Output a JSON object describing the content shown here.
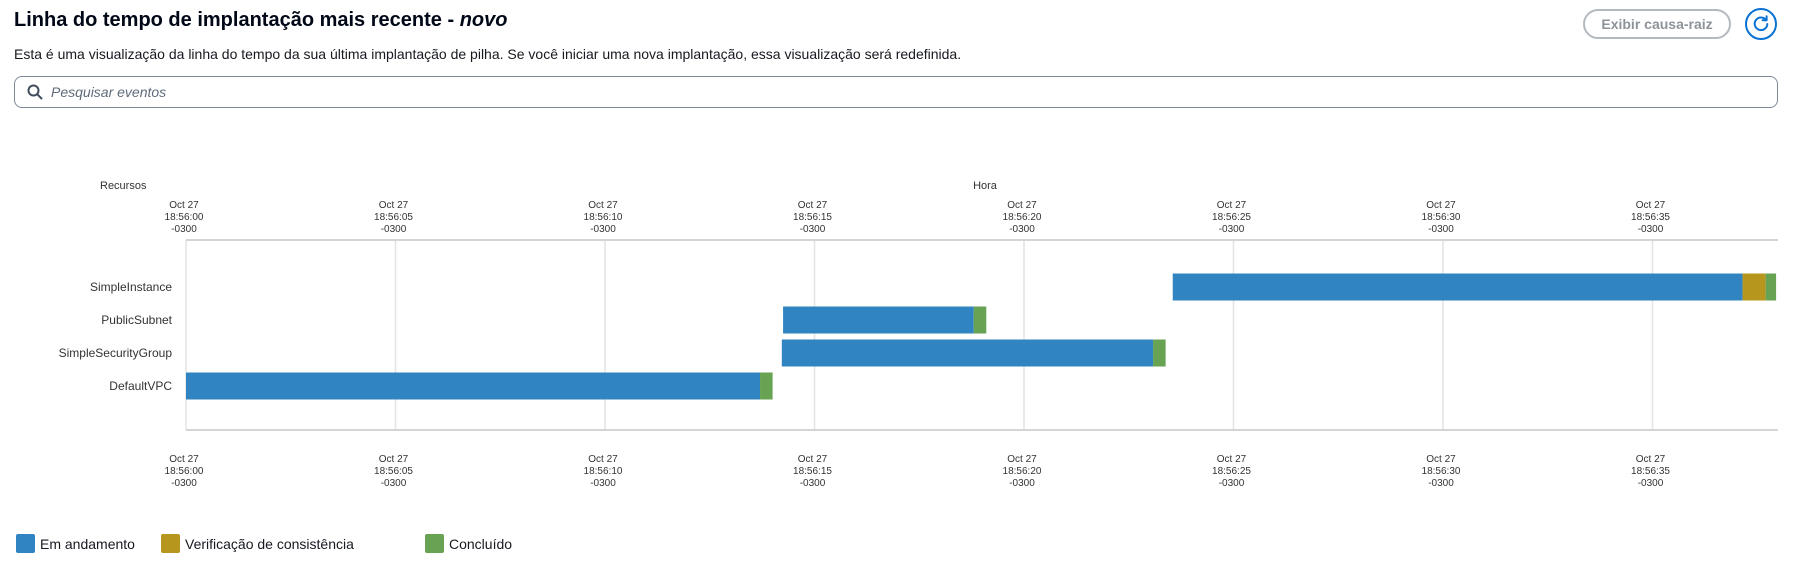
{
  "header": {
    "title": "Linha do tempo de implantação mais recente",
    "separator": "-",
    "tag": "novo",
    "description": "Esta é uma visualização da linha do tempo da sua última implantação de pilha. Se você iniciar uma nova implantação, essa visualização será redefinida.",
    "root_cause_label": "Exibir causa-raiz",
    "refresh_icon": "refresh-icon"
  },
  "search": {
    "placeholder": "Pesquisar eventos",
    "value": "",
    "icon": "search-icon"
  },
  "colors": {
    "in_progress": "#3184c2",
    "consistency_check": "#b7961d",
    "complete": "#67a353",
    "grid": "#e3e3e3",
    "axis": "#d5d5d5"
  },
  "chart_data": {
    "type": "gantt",
    "ylabel": "Recursos",
    "xlabel": "Hora",
    "x_ticks": [
      {
        "date": "Oct 27",
        "time": "18:56:00",
        "tz": "-0300",
        "t": 0
      },
      {
        "date": "Oct 27",
        "time": "18:56:05",
        "tz": "-0300",
        "t": 5
      },
      {
        "date": "Oct 27",
        "time": "18:56:10",
        "tz": "-0300",
        "t": 10
      },
      {
        "date": "Oct 27",
        "time": "18:56:15",
        "tz": "-0300",
        "t": 15
      },
      {
        "date": "Oct 27",
        "time": "18:56:20",
        "tz": "-0300",
        "t": 20
      },
      {
        "date": "Oct 27",
        "time": "18:56:25",
        "tz": "-0300",
        "t": 25
      },
      {
        "date": "Oct 27",
        "time": "18:56:30",
        "tz": "-0300",
        "t": 30
      },
      {
        "date": "Oct 27",
        "time": "18:56:35",
        "tz": "-0300",
        "t": 35
      }
    ],
    "resources": [
      {
        "name": "SimpleInstance",
        "segments": [
          {
            "status": "in_progress",
            "start": 23.55,
            "end": 37.15
          },
          {
            "status": "consistency_check",
            "start": 37.15,
            "end": 37.7
          },
          {
            "status": "complete",
            "start": 37.7,
            "end": 37.95
          }
        ]
      },
      {
        "name": "PublicSubnet",
        "segments": [
          {
            "status": "in_progress",
            "start": 14.25,
            "end": 18.8
          },
          {
            "status": "complete",
            "start": 18.8,
            "end": 19.1
          }
        ]
      },
      {
        "name": "SimpleSecurityGroup",
        "segments": [
          {
            "status": "in_progress",
            "start": 14.22,
            "end": 23.08
          },
          {
            "status": "complete",
            "start": 23.08,
            "end": 23.38
          }
        ]
      },
      {
        "name": "DefaultVPC",
        "segments": [
          {
            "status": "in_progress",
            "start": 0,
            "end": 13.7
          },
          {
            "status": "complete",
            "start": 13.7,
            "end": 14.0
          }
        ]
      }
    ],
    "legend": [
      {
        "key": "in_progress",
        "label": "Em andamento"
      },
      {
        "key": "consistency_check",
        "label": "Verificação de consistência"
      },
      {
        "key": "complete",
        "label": "Concluído"
      }
    ]
  }
}
